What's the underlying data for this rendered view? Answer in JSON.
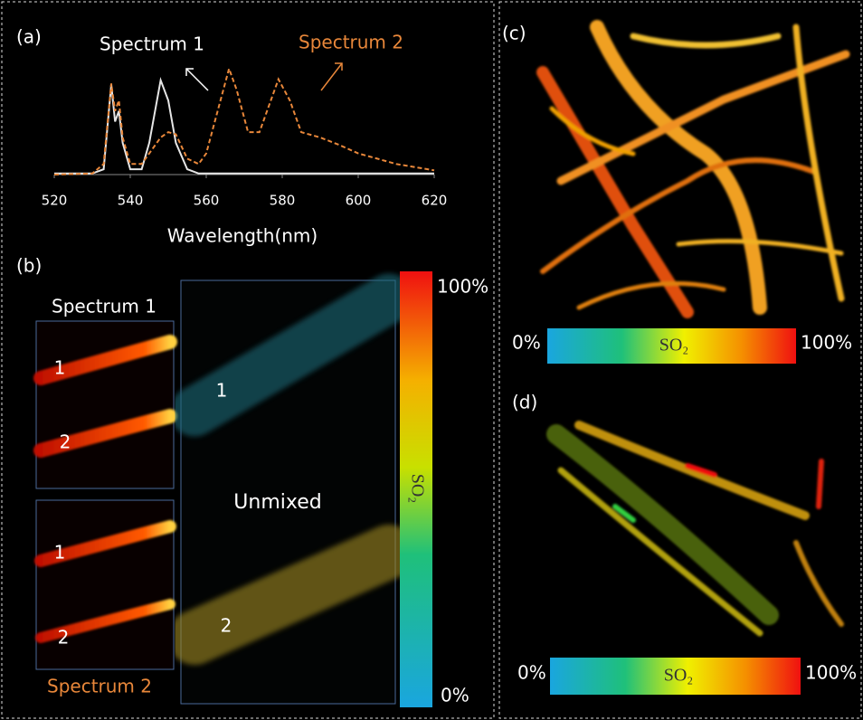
{
  "chart_data": {
    "type": "line",
    "panel_label": "(a)",
    "x_label": "Wavelength(nm)",
    "x": [
      520,
      530,
      533,
      535,
      536,
      537,
      538,
      540,
      543,
      545,
      548,
      550,
      552,
      555,
      558,
      560,
      563,
      566,
      568,
      571,
      574,
      577,
      579,
      582,
      585,
      590,
      595,
      600,
      605,
      610,
      615,
      620
    ],
    "series": [
      {
        "name": "Spectrum 1",
        "color": "#e6e6e6",
        "style": "solid",
        "values": [
          0.01,
          0.01,
          0.05,
          0.85,
          0.5,
          0.6,
          0.3,
          0.05,
          0.05,
          0.3,
          0.89,
          0.7,
          0.3,
          0.05,
          0.01,
          0.01,
          0.01,
          0.01,
          0.01,
          0.01,
          0.01,
          0.01,
          0.01,
          0.01,
          0.01,
          0.01,
          0.01,
          0.01,
          0.01,
          0.01,
          0.01,
          0.01
        ]
      },
      {
        "name": "Spectrum 2",
        "color": "#e8873a",
        "style": "dashed",
        "values": [
          0,
          0.01,
          0.1,
          0.86,
          0.6,
          0.7,
          0.35,
          0.1,
          0.1,
          0.2,
          0.35,
          0.4,
          0.38,
          0.15,
          0.1,
          0.2,
          0.6,
          1.0,
          0.8,
          0.4,
          0.4,
          0.7,
          0.9,
          0.7,
          0.4,
          0.35,
          0.28,
          0.2,
          0.15,
          0.1,
          0.07,
          0.04
        ]
      }
    ],
    "xlim": [
      520,
      620
    ],
    "xticks": [
      520,
      540,
      560,
      580,
      600,
      620
    ],
    "ylim": [
      0,
      1.05
    ]
  },
  "panel_b": {
    "label": "(b)",
    "top_title": "Spectrum 1",
    "top_marks": [
      "1",
      "2"
    ],
    "bottom_title": "Spectrum 2",
    "bottom_marks": [
      "1",
      "2"
    ],
    "unmixed_title": "Unmixed",
    "unmixed_marks": [
      "1",
      "2"
    ],
    "colorbar": {
      "max_label": "100%",
      "min_label": "0%",
      "title": "SO₂"
    }
  },
  "panel_c": {
    "label": "(c)",
    "colorbar": {
      "min_label": "0%",
      "title": "SO₂",
      "max_label": "100%"
    }
  },
  "panel_d": {
    "label": "(d)",
    "colorbar": {
      "min_label": "0%",
      "title": "SO₂",
      "max_label": "100%"
    }
  }
}
